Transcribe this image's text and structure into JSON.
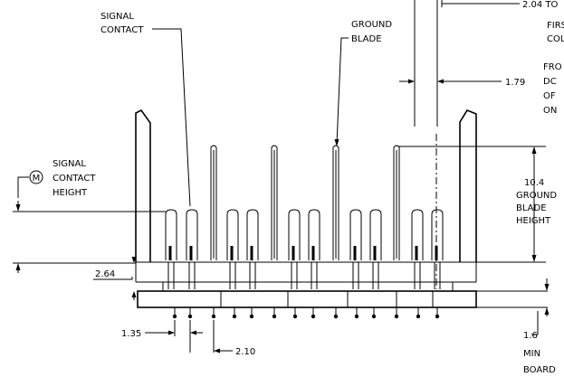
{
  "callouts": {
    "signal_contact": [
      "SIGNAL",
      "CONTACT"
    ],
    "ground_blade": [
      "GROUND",
      "BLADE"
    ],
    "signal_contact_height": [
      "SIGNAL",
      "CONTACT",
      "HEIGHT"
    ],
    "datum_symbol": "M",
    "ground_blade_height": [
      "10.4",
      "GROUND",
      "BLADE",
      "HEIGHT"
    ],
    "first_column": [
      "2.04 TO",
      "FIRS",
      "COLU"
    ],
    "from_dc": [
      "FRO",
      "DC",
      "OF",
      "ON"
    ],
    "board": [
      "1.6",
      "MIN",
      "BOARD"
    ]
  },
  "dimensions": {
    "d_1_79": "1.79",
    "d_2_64": "2.64",
    "d_1_35": "1.35",
    "d_2_10": "2.10"
  }
}
